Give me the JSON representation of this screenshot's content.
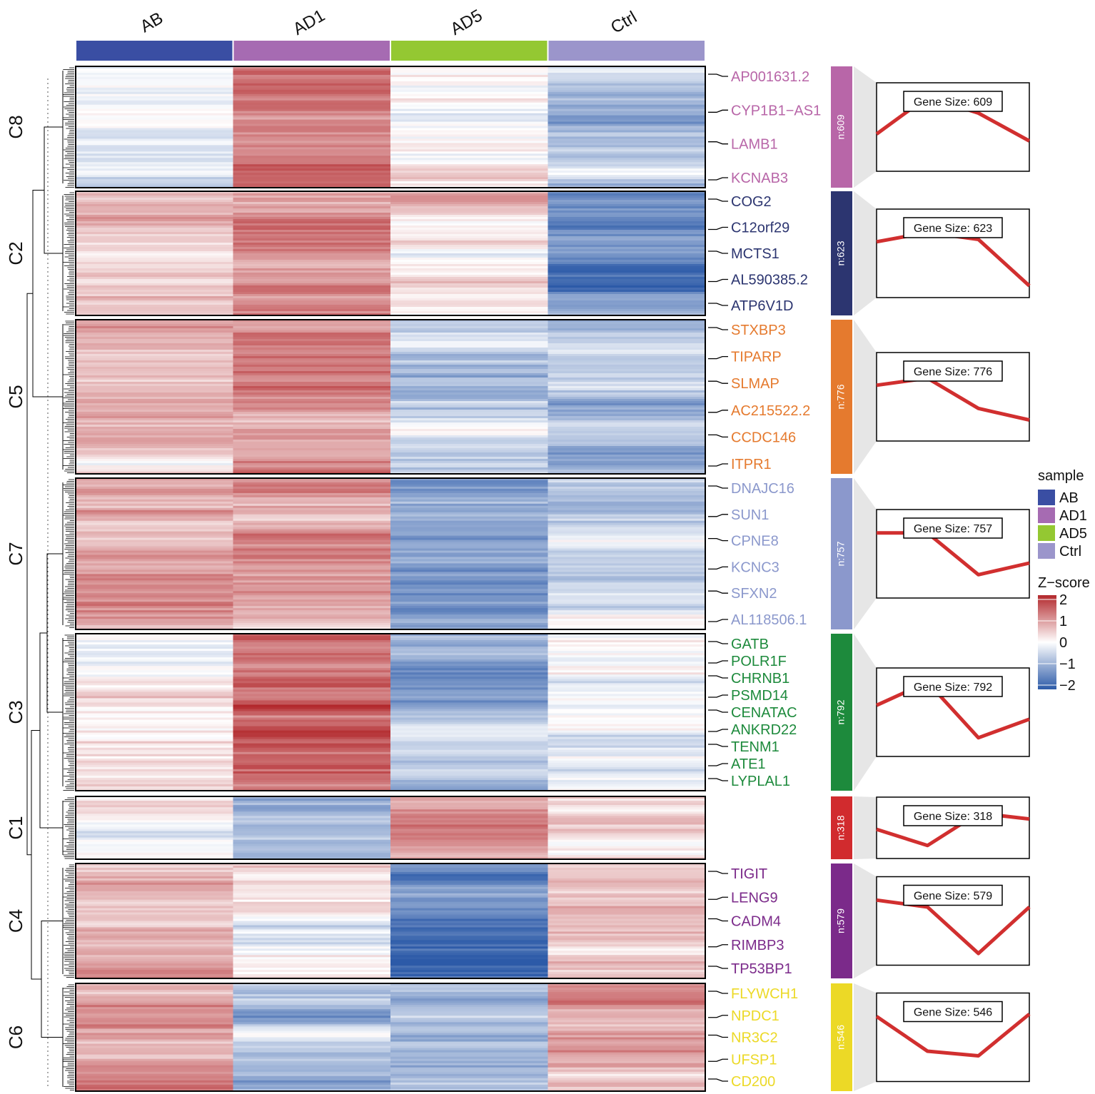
{
  "chart_data": {
    "type": "heatmap",
    "title": "",
    "samples": [
      "AB",
      "AD1",
      "AD5",
      "Ctrl"
    ],
    "sample_colors": {
      "AB": "#3a4ea3",
      "AD1": "#a66bb2",
      "AD5": "#94c832",
      "Ctrl": "#9b95cb"
    },
    "colorscale": {
      "low": "#2c5aa8",
      "mid": "#ffffff",
      "high": "#b2282c"
    },
    "legend": {
      "sample_title": "sample",
      "sample_entries": [
        "AB",
        "AD1",
        "AD5",
        "Ctrl"
      ],
      "zscore_title": "Z−score",
      "zscore_ticks": [
        "2",
        "1",
        "0",
        "−1",
        "−2"
      ],
      "zscore_values": [
        2,
        1,
        0,
        -1,
        -2
      ]
    },
    "clusters": [
      {
        "id": "C8",
        "n_label": "n:609",
        "gene_size_label": "Gene Size: 609",
        "color": "#b866a8",
        "means": [
          -0.3,
          1.3,
          0.0,
          -0.6
        ],
        "profile": [
          -0.3,
          1.3,
          0.6,
          -0.6
        ],
        "genes": [
          "AP001631.2",
          "CYP1B1−AS1",
          "LAMB1",
          "KCNAB3"
        ]
      },
      {
        "id": "C2",
        "n_label": "n:623",
        "gene_size_label": "Gene Size: 623",
        "color": "#2c3570",
        "means": [
          0.4,
          0.8,
          0.5,
          -1.4
        ],
        "profile": [
          0.5,
          0.9,
          0.6,
          -1.4
        ],
        "genes": [
          "COG2",
          "C12orf29",
          "MCTS1",
          "AL590385.2",
          "ATP6V1D"
        ]
      },
      {
        "id": "C5",
        "n_label": "n:776",
        "gene_size_label": "Gene Size: 776",
        "color": "#e57a2e",
        "means": [
          0.7,
          1.0,
          -0.5,
          -1.0
        ],
        "profile": [
          0.5,
          0.8,
          -0.5,
          -1.0
        ],
        "genes": [
          "STXBP3",
          "TIPARP",
          "SLMAP",
          "AC215522.2",
          "CCDC146",
          "ITPR1"
        ]
      },
      {
        "id": "C7",
        "n_label": "n:757",
        "gene_size_label": "Gene Size: 757",
        "color": "#8b98cc",
        "means": [
          0.9,
          0.9,
          -1.2,
          -0.4
        ],
        "profile": [
          0.9,
          0.9,
          -0.9,
          -0.4
        ],
        "genes": [
          "DNAJC16",
          "SUN1",
          "CPNE8",
          "KCNC3",
          "SFXN2",
          "AL118506.1"
        ]
      },
      {
        "id": "C3",
        "n_label": "n:792",
        "gene_size_label": "Gene Size: 792",
        "color": "#1d8a3c",
        "means": [
          0.3,
          1.3,
          -1.1,
          -0.3
        ],
        "profile": [
          0.3,
          1.3,
          -1.1,
          -0.3
        ],
        "genes": [
          "GATB",
          "POLR1F",
          "CHRNB1",
          "PSMD14",
          "CENATAC",
          "ANKRD22",
          "TENM1",
          "ATE1",
          "LYPLAL1"
        ]
      },
      {
        "id": "C1",
        "n_label": "n:318",
        "gene_size_label": "Gene Size: 318",
        "color": "#d12b2e",
        "means": [
          0.0,
          -1.1,
          0.9,
          0.5
        ],
        "profile": [
          -0.1,
          -1.2,
          1.0,
          0.6
        ],
        "genes": []
      },
      {
        "id": "C4",
        "n_label": "n:579",
        "gene_size_label": "Gene Size: 579",
        "color": "#7b2a8a",
        "means": [
          0.7,
          0.3,
          -1.4,
          0.6
        ],
        "profile": [
          0.9,
          0.6,
          -1.4,
          0.6
        ],
        "genes": [
          "TIGIT",
          "LENG9",
          "CADM4",
          "RIMBP3",
          "TP53BP1"
        ]
      },
      {
        "id": "C6",
        "n_label": "n:546",
        "gene_size_label": "Gene Size: 546",
        "color": "#ecd926",
        "means": [
          0.9,
          -0.7,
          -1.0,
          0.9
        ],
        "profile": [
          0.9,
          -0.6,
          -0.8,
          1.0
        ],
        "genes": [
          "FLYWCH1",
          "NPDC1",
          "NR3C2",
          "UFSP1",
          "CD200"
        ]
      }
    ]
  }
}
